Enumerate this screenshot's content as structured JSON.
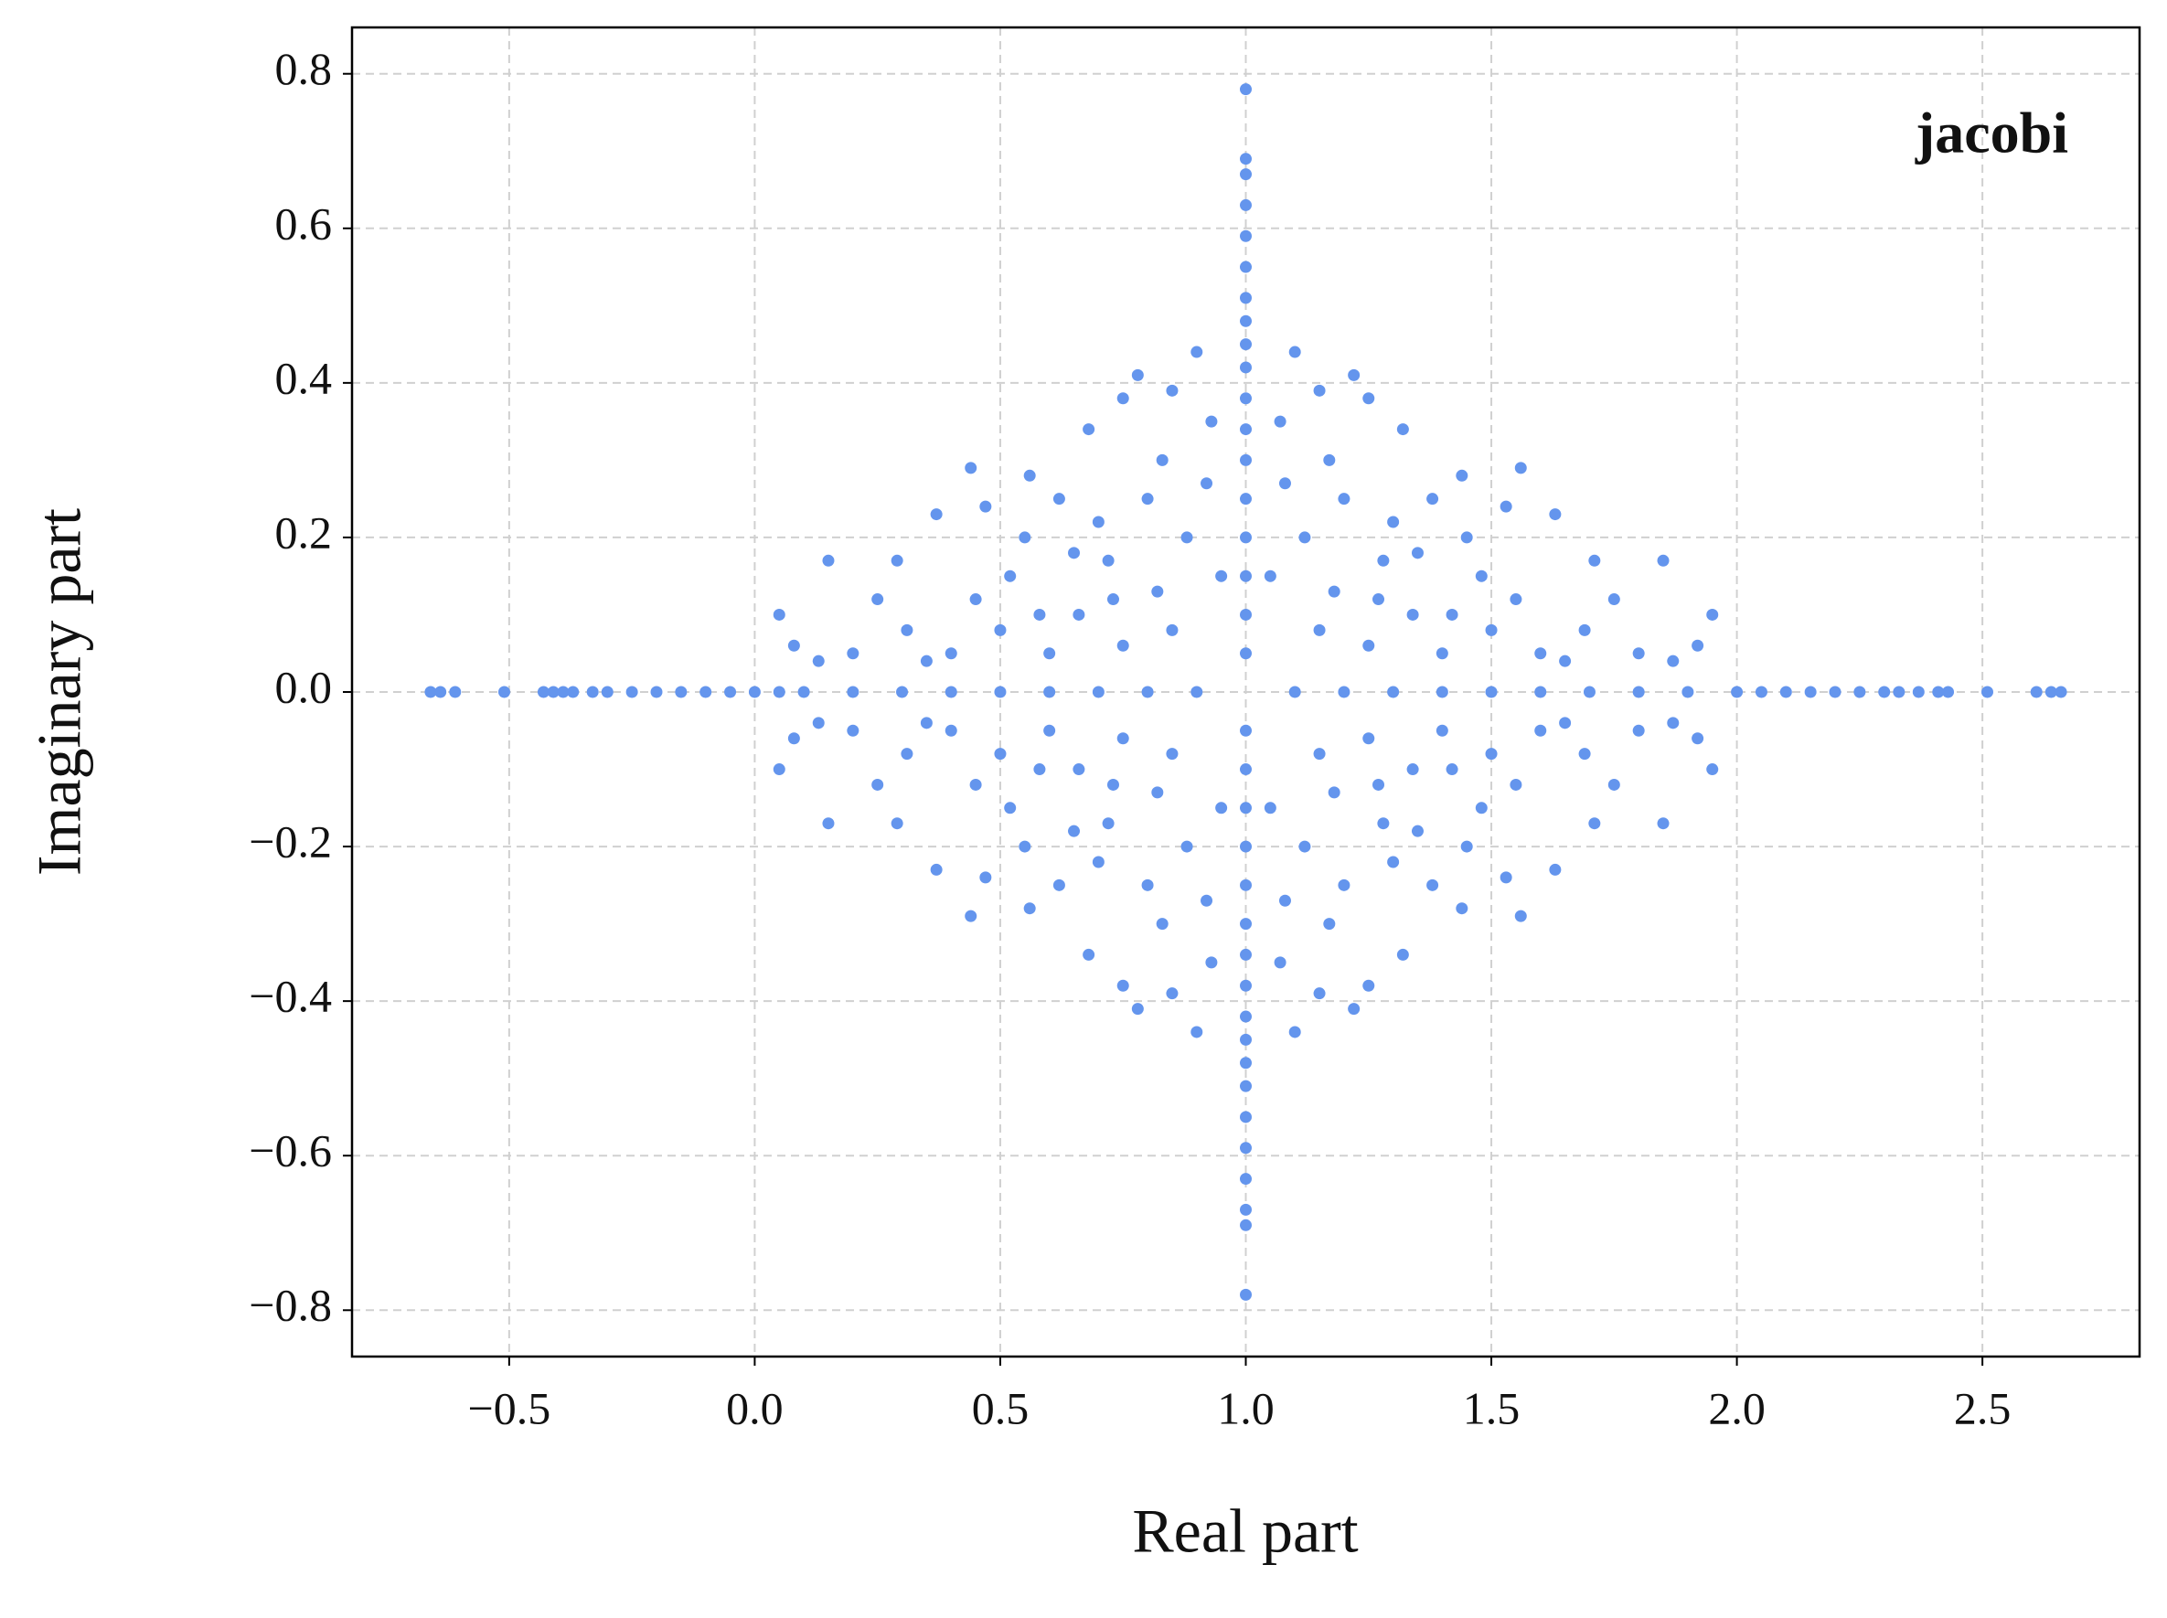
{
  "chart_data": {
    "type": "scatter",
    "annotation": "jacobi",
    "xlabel": "Real part",
    "ylabel": "Imaginary part",
    "color": "#6495ed",
    "grid": true,
    "xlim": [
      -0.82,
      2.82
    ],
    "ylim": [
      -0.86,
      0.86
    ],
    "xticks": [
      {
        "value": -0.5,
        "label": "−0.5"
      },
      {
        "value": 0,
        "label": "0.0"
      },
      0.5,
      {
        "value": 1,
        "label": "1.0"
      },
      1.5,
      {
        "value": 2,
        "label": "2.0"
      },
      2.5
    ],
    "yticks": [
      {
        "value": -0.8,
        "label": "−0.8"
      },
      {
        "value": -0.6,
        "label": "−0.6"
      },
      {
        "value": -0.4,
        "label": "−0.4"
      },
      {
        "value": -0.2,
        "label": "−0.2"
      },
      {
        "value": 0,
        "label": "0.0"
      },
      0.2,
      0.4,
      0.6,
      0.8
    ],
    "x": [
      0.05,
      0.15,
      0.13,
      0.08,
      0.2,
      0.25,
      0.29,
      0.31,
      0.37,
      0.44,
      0.47,
      0.45,
      0.4,
      0.52,
      0.55,
      0.58,
      0.62,
      0.65,
      0.68,
      0.7,
      0.73,
      0.75,
      0.78,
      0.8,
      0.83,
      0.85,
      0.88,
      0.9,
      0.93,
      0.95,
      0.6,
      0.75,
      0.85,
      0.5,
      0.35,
      0.92,
      0.66,
      0.56,
      0.72,
      0.82,
      1.95,
      1.85,
      1.87,
      1.92,
      1.8,
      1.75,
      1.71,
      1.69,
      1.63,
      1.56,
      1.53,
      1.55,
      1.6,
      1.48,
      1.45,
      1.42,
      1.38,
      1.35,
      1.32,
      1.3,
      1.27,
      1.25,
      1.22,
      1.2,
      1.17,
      1.15,
      1.12,
      1.1,
      1.07,
      1.05,
      1.4,
      1.25,
      1.15,
      1.5,
      1.65,
      1.08,
      1.34,
      1.44,
      1.28,
      1.18,
      0.05,
      0.15,
      0.13,
      0.08,
      0.2,
      0.25,
      0.29,
      0.31,
      0.37,
      0.44,
      0.47,
      0.45,
      0.4,
      0.52,
      0.55,
      0.58,
      0.62,
      0.65,
      0.68,
      0.7,
      0.73,
      0.75,
      0.78,
      0.8,
      0.83,
      0.85,
      0.88,
      0.9,
      0.93,
      0.95,
      0.6,
      0.75,
      0.85,
      0.5,
      0.35,
      0.92,
      0.66,
      0.56,
      0.72,
      0.82,
      1.95,
      1.85,
      1.87,
      1.92,
      1.8,
      1.75,
      1.71,
      1.69,
      1.63,
      1.56,
      1.53,
      1.55,
      1.6,
      1.48,
      1.45,
      1.42,
      1.38,
      1.35,
      1.32,
      1.3,
      1.27,
      1.25,
      1.22,
      1.2,
      1.17,
      1.15,
      1.12,
      1.1,
      1.07,
      1.05,
      1.4,
      1.25,
      1.15,
      1.5,
      1.65,
      1.08,
      1.34,
      1.44,
      1.28,
      1.18,
      -0.66,
      -0.64,
      -0.61,
      -0.51,
      -0.43,
      -0.41,
      -0.39,
      -0.37,
      -0.33,
      -0.3,
      -0.25,
      -0.2,
      -0.15,
      -0.1,
      -0.05,
      0,
      0.05,
      0.1,
      0.2,
      0.3,
      0.4,
      0.5,
      0.6,
      0.7,
      0.8,
      0.9,
      1.1,
      1.2,
      1.3,
      1.4,
      1.5,
      1.6,
      1.7,
      1.8,
      1.9,
      2,
      2.05,
      2.1,
      2.15,
      2.2,
      2.25,
      2.3,
      2.33,
      2.37,
      2.41,
      2.43,
      2.51,
      2.61,
      2.64,
      2.66,
      1,
      1,
      1,
      1,
      1,
      1,
      1,
      1,
      1,
      1,
      1,
      1,
      1,
      1,
      1,
      1,
      1,
      1,
      1,
      1,
      1,
      1,
      1,
      1,
      1,
      1,
      1,
      1,
      1,
      1,
      1,
      1,
      1,
      1,
      1,
      1
    ],
    "values": [
      0.1,
      0.17,
      0.04,
      0.06,
      0.05,
      0.12,
      0.17,
      0.08,
      0.23,
      0.29,
      0.24,
      0.12,
      0.05,
      0.15,
      0.2,
      0.1,
      0.25,
      0.18,
      0.34,
      0.22,
      0.12,
      0.38,
      0.41,
      0.25,
      0.3,
      0.39,
      0.2,
      0.44,
      0.35,
      0.15,
      0.05,
      0.06,
      0.08,
      0.08,
      0.04,
      0.27,
      0.1,
      0.28,
      0.17,
      0.13,
      0.1,
      0.17,
      0.04,
      0.06,
      0.05,
      0.12,
      0.17,
      0.08,
      0.23,
      0.29,
      0.24,
      0.12,
      0.05,
      0.15,
      0.2,
      0.1,
      0.25,
      0.18,
      0.34,
      0.22,
      0.12,
      0.38,
      0.41,
      0.25,
      0.3,
      0.39,
      0.2,
      0.44,
      0.35,
      0.15,
      0.05,
      0.06,
      0.08,
      0.08,
      0.04,
      0.27,
      0.1,
      0.28,
      0.17,
      0.13,
      -0.1,
      -0.17,
      -0.04,
      -0.06,
      -0.05,
      -0.12,
      -0.17,
      -0.08,
      -0.23,
      -0.29,
      -0.24,
      -0.12,
      -0.05,
      -0.15,
      -0.2,
      -0.1,
      -0.25,
      -0.18,
      -0.34,
      -0.22,
      -0.12,
      -0.38,
      -0.41,
      -0.25,
      -0.3,
      -0.39,
      -0.2,
      -0.44,
      -0.35,
      -0.15,
      -0.05,
      -0.06,
      -0.08,
      -0.08,
      -0.04,
      -0.27,
      -0.1,
      -0.28,
      -0.17,
      -0.13,
      -0.1,
      -0.17,
      -0.04,
      -0.06,
      -0.05,
      -0.12,
      -0.17,
      -0.08,
      -0.23,
      -0.29,
      -0.24,
      -0.12,
      -0.05,
      -0.15,
      -0.2,
      -0.1,
      -0.25,
      -0.18,
      -0.34,
      -0.22,
      -0.12,
      -0.38,
      -0.41,
      -0.25,
      -0.3,
      -0.39,
      -0.2,
      -0.44,
      -0.35,
      -0.15,
      -0.05,
      -0.06,
      -0.08,
      -0.08,
      -0.04,
      -0.27,
      -0.1,
      -0.28,
      -0.17,
      -0.13,
      0,
      0,
      0,
      0,
      0,
      0,
      0,
      0,
      0,
      0,
      0,
      0,
      0,
      0,
      0,
      0,
      0,
      0,
      0,
      0,
      0,
      0,
      0,
      0,
      0,
      0,
      0,
      0,
      0,
      0,
      0,
      0,
      0,
      0,
      0,
      0,
      0,
      0,
      0,
      0,
      0,
      0,
      0,
      0,
      0,
      0,
      0,
      0,
      0,
      0,
      0.78,
      0.69,
      0.67,
      0.63,
      0.59,
      0.55,
      0.51,
      0.48,
      0.45,
      0.42,
      0.38,
      0.34,
      0.3,
      0.25,
      0.2,
      0.15,
      0.1,
      0.05,
      -0.78,
      -0.69,
      -0.67,
      -0.63,
      -0.59,
      -0.55,
      -0.51,
      -0.48,
      -0.45,
      -0.42,
      -0.38,
      -0.34,
      -0.3,
      -0.25,
      -0.2,
      -0.15,
      -0.1,
      -0.05
    ]
  }
}
